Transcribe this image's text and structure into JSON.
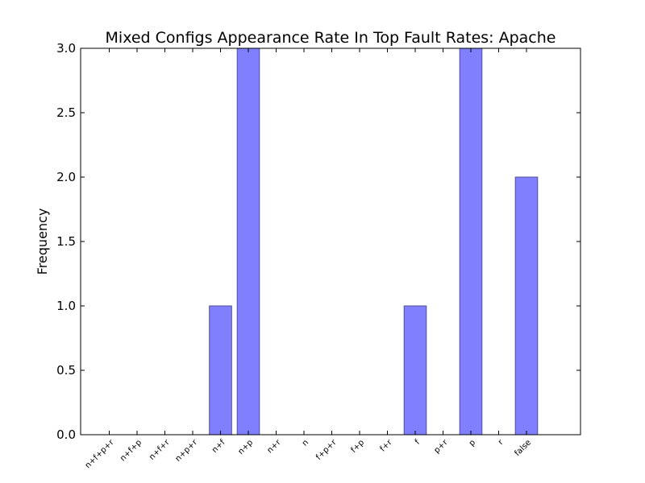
{
  "chart_data": {
    "type": "bar",
    "title": "Mixed Configs Appearance Rate In Top Fault Rates: Apache",
    "xlabel": "",
    "ylabel": "Frequency",
    "categories": [
      "n+f+p+r",
      "n+f+p",
      "n+f+r",
      "n+p+r",
      "n+f",
      "n+p",
      "n+r",
      "n",
      "f+p+r",
      "f+p",
      "f+r",
      "f",
      "p+r",
      "p",
      "r",
      "false"
    ],
    "values": [
      0,
      0,
      0,
      0,
      1,
      3,
      0,
      0,
      0,
      0,
      0,
      1,
      0,
      3,
      0,
      2
    ],
    "ylim": [
      0,
      3.0
    ],
    "yticks": [
      "0.0",
      "0.5",
      "1.0",
      "1.5",
      "2.0",
      "2.5",
      "3.0"
    ],
    "bar_color": "#8080ff",
    "bar_edge_color": "#4d4d99",
    "grid": false,
    "legend": "none"
  }
}
